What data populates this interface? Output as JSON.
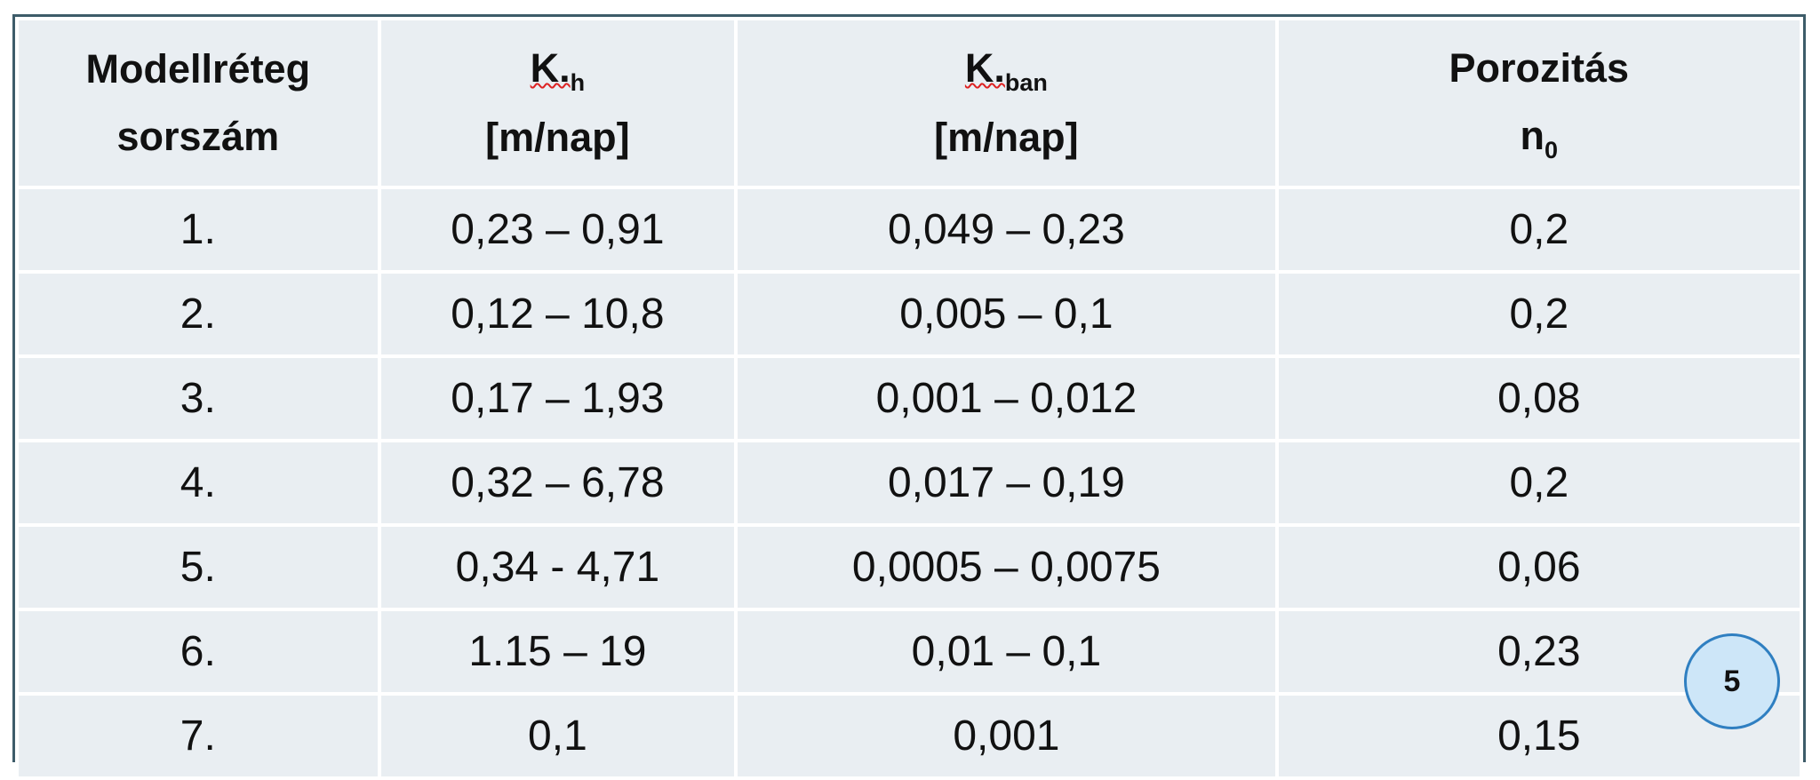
{
  "table": {
    "header": [
      {
        "line1": "Modellréteg",
        "line2": "sorszám"
      },
      {
        "line1": "K.",
        "line1_sub": "h",
        "line2": "[m/nap]"
      },
      {
        "line1": "K.",
        "line1_sub": "ban",
        "line2": "[m/nap]"
      },
      {
        "line1": "Porozitás",
        "line2": "n",
        "line2_sub": "0"
      }
    ],
    "rows": [
      [
        "1.",
        "0,23 – 0,91",
        "0,049 – 0,23",
        "0,2"
      ],
      [
        "2.",
        "0,12 – 10,8",
        "0,005 – 0,1",
        "0,2"
      ],
      [
        "3.",
        "0,17 – 1,93",
        "0,001 – 0,012",
        "0,08"
      ],
      [
        "4.",
        "0,32 – 6,78",
        "0,017 – 0,19",
        "0,2"
      ],
      [
        "5.",
        "0,34 - 4,71",
        "0,0005 – 0,0075",
        "0,06"
      ],
      [
        "6.",
        "1.15 – 19",
        "0,01 – 0,1",
        "0,23"
      ],
      [
        "7.",
        "0,1",
        "0,001",
        "0,15"
      ]
    ]
  },
  "page_badge": "5"
}
